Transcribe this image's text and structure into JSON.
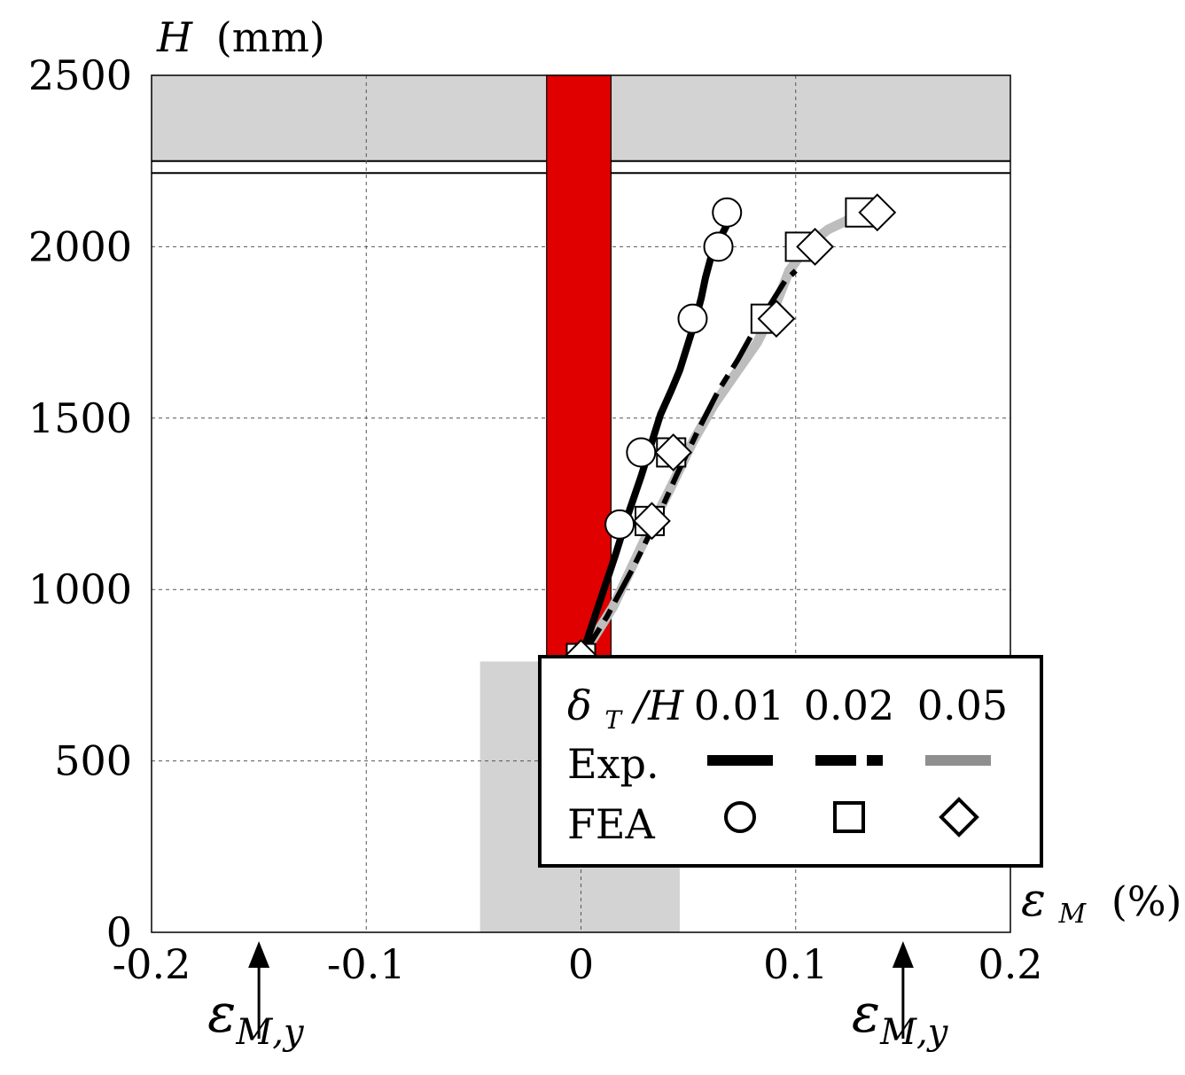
{
  "chart_data": {
    "type": "line",
    "xlabel_symbol": "ε",
    "xlabel_subscript": "M",
    "xlabel_unit": "(%)",
    "ylabel_symbol": "H",
    "ylabel_unit": "(mm)",
    "xlim": [
      -0.2,
      0.2
    ],
    "ylim": [
      0,
      2500
    ],
    "xticks": [
      -0.2,
      -0.1,
      0,
      0.1,
      0.2
    ],
    "xtick_labels": [
      "-0.2",
      "-0.1",
      "0",
      "0.1",
      "0.2"
    ],
    "yticks": [
      0,
      500,
      1000,
      1500,
      2000,
      2500
    ],
    "ytick_labels": [
      "0",
      "500",
      "1000",
      "1500",
      "2000",
      "2500"
    ],
    "grid": true,
    "legend_placement": "bottom-right",
    "legend": {
      "param_symbol": "δ",
      "param_subscript": "T",
      "param_rest": "/H",
      "exp_label": "Exp.",
      "fea_label": "FEA"
    },
    "annotations": [
      {
        "symbol": "ε",
        "subscript": "M,y",
        "x": -0.15
      },
      {
        "symbol": "ε",
        "subscript": "M,y",
        "x": 0.15
      }
    ],
    "shaded_regions": [
      {
        "name": "beam",
        "x": [
          -0.2,
          0.2
        ],
        "y": [
          2250,
          2500
        ],
        "color": "#d3d3d3"
      },
      {
        "name": "foundation",
        "x": [
          -0.047,
          0.046
        ],
        "y": [
          0,
          790
        ],
        "color": "#d3d3d3"
      },
      {
        "name": "yield-band",
        "x": [
          -0.016,
          0.014
        ],
        "y": [
          790,
          2500
        ],
        "color": "#e00000"
      }
    ],
    "beam_lines_y": [
      2250,
      2215
    ],
    "series": [
      {
        "name": "0.01",
        "kind": "Exp.",
        "style": "solid",
        "color": "#000000",
        "x": [
          0.0,
          0.008,
          0.016,
          0.022,
          0.028,
          0.033,
          0.037,
          0.042,
          0.046,
          0.049,
          0.053,
          0.056,
          0.058,
          0.061,
          0.066,
          0.071
        ],
        "y": [
          800,
          950,
          1100,
          1220,
          1330,
          1430,
          1510,
          1580,
          1640,
          1700,
          1780,
          1850,
          1910,
          1980,
          2040,
          2100
        ]
      },
      {
        "name": "0.02",
        "kind": "Exp.",
        "style": "dashdot",
        "color": "#000000",
        "x": [
          0.0,
          0.012,
          0.024,
          0.035,
          0.045,
          0.055,
          0.064,
          0.073,
          0.081,
          0.088,
          0.095,
          0.1
        ],
        "y": [
          800,
          920,
          1060,
          1200,
          1340,
          1470,
          1580,
          1670,
          1760,
          1830,
          1900,
          1930
        ]
      },
      {
        "name": "0.05",
        "kind": "Exp.",
        "style": "solid",
        "color": "#bdbdbd",
        "x": [
          0.0,
          0.015,
          0.03,
          0.042,
          0.052,
          0.062,
          0.072,
          0.082,
          0.09,
          0.097,
          0.105,
          0.115,
          0.125,
          0.133
        ],
        "y": [
          800,
          950,
          1150,
          1300,
          1430,
          1540,
          1630,
          1720,
          1820,
          1930,
          2000,
          2050,
          2080,
          2100
        ]
      },
      {
        "name": "0.01",
        "kind": "FEA",
        "marker": "circle",
        "x": [
          0.0,
          0.018,
          0.028,
          0.052,
          0.064,
          0.068
        ],
        "y": [
          800,
          1190,
          1400,
          1790,
          2000,
          2100
        ]
      },
      {
        "name": "0.02",
        "kind": "FEA",
        "marker": "square",
        "x": [
          0.0,
          0.032,
          0.042,
          0.086,
          0.102,
          0.13
        ],
        "y": [
          800,
          1200,
          1400,
          1790,
          2000,
          2100
        ]
      },
      {
        "name": "0.05",
        "kind": "FEA",
        "marker": "diamond",
        "x": [
          0.0,
          0.033,
          0.043,
          0.091,
          0.109,
          0.138
        ],
        "y": [
          800,
          1200,
          1400,
          1790,
          2000,
          2100
        ]
      }
    ]
  }
}
